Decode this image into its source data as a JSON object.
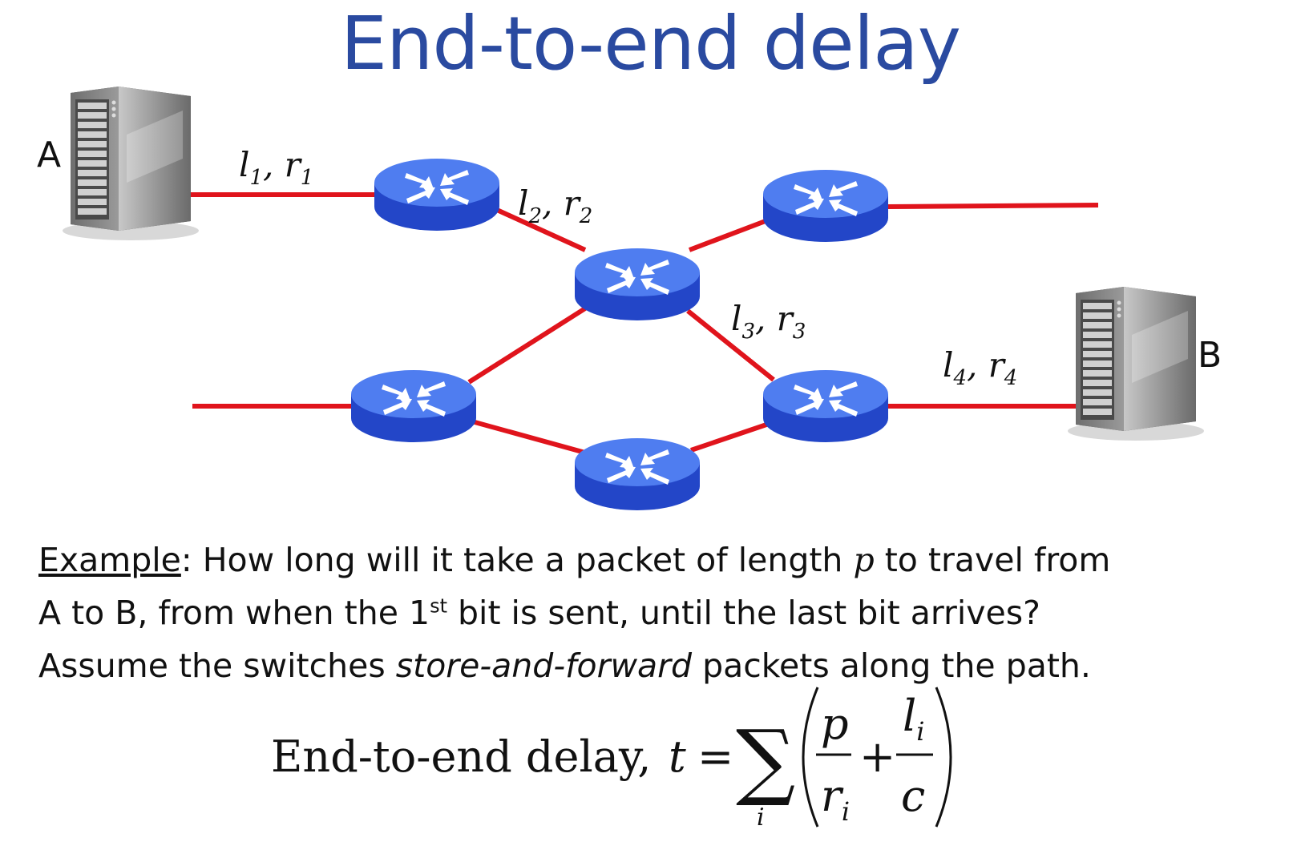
{
  "slide": {
    "title": "End-to-end delay"
  },
  "hosts": {
    "a_label": "A",
    "b_label": "B"
  },
  "links": [
    {
      "l": "l",
      "l_sub": "1",
      "r": "r",
      "r_sub": "1"
    },
    {
      "l": "l",
      "l_sub": "2",
      "r": "r",
      "r_sub": "2"
    },
    {
      "l": "l",
      "l_sub": "3",
      "r": "r",
      "r_sub": "3"
    },
    {
      "l": "l",
      "l_sub": "4",
      "r": "r",
      "r_sub": "4"
    }
  ],
  "example": {
    "heading": "Example",
    "line1_a": ": How long will it take a packet of length ",
    "line1_var": "p",
    "line1_b": " to travel from",
    "line2_a": "A to B, from when the 1",
    "line2_sup": "st",
    "line2_b": " bit is sent, until the last bit arrives?",
    "line3_a": "Assume the switches ",
    "line3_em": "store-and-forward",
    "line3_b": " packets along the path."
  },
  "formula": {
    "label": "End-to-end delay,",
    "t": "t",
    "equals": "=",
    "sigma": "∑",
    "index": "i",
    "p": "p",
    "r": "r",
    "r_sub": "i",
    "plus": "+",
    "l": "l",
    "l_sub": "i",
    "c": "c"
  },
  "colors": {
    "title": "#2a4aa0",
    "link": "#e0141c",
    "router_top": "#4f7df0",
    "router_side": "#2346c8",
    "router_arrow": "#ffffff",
    "server_body": "#8a8a8a"
  }
}
